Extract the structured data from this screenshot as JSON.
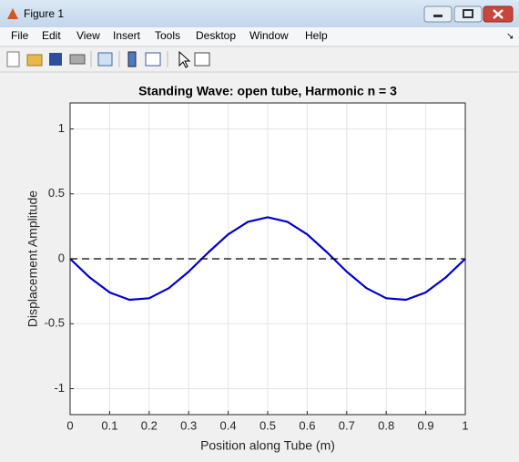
{
  "window": {
    "title": "Figure 1",
    "menu": [
      "File",
      "Edit",
      "View",
      "Insert",
      "Tools",
      "Desktop",
      "Window",
      "Help"
    ]
  },
  "chart_data": {
    "type": "line",
    "title": "Standing Wave: open tube,  Harmonic n = 3",
    "x_label": "Position along Tube (m)",
    "y_label": "Displacement Amplitude",
    "series": [
      {
        "color": "#0000cc",
        "x": [
          0,
          0.05,
          0.1,
          0.15,
          0.2,
          0.25,
          0.3,
          0.35,
          0.4,
          0.45,
          0.5,
          0.55,
          0.6,
          0.65,
          0.7,
          0.75,
          0.8,
          0.85,
          0.9,
          0.95,
          1
        ],
        "values": [
          0,
          -0.145,
          -0.259,
          -0.316,
          -0.304,
          -0.226,
          -0.099,
          0.05,
          0.188,
          0.285,
          0.32,
          0.285,
          0.188,
          0.05,
          -0.099,
          -0.226,
          -0.304,
          -0.316,
          -0.259,
          -0.145,
          0
        ]
      },
      {
        "color": "#000000",
        "dashed": true,
        "x": [
          0,
          1
        ],
        "values": [
          0,
          0
        ]
      }
    ],
    "xlim": [
      0,
      1
    ],
    "ylim": [
      -1.2,
      1.2
    ],
    "xticks": [
      0,
      0.1,
      0.2,
      0.3,
      0.4,
      0.5,
      0.6,
      0.7,
      0.8,
      0.9,
      1
    ],
    "yticks": [
      -1,
      -0.5,
      0,
      0.5,
      1
    ],
    "grid": true
  }
}
